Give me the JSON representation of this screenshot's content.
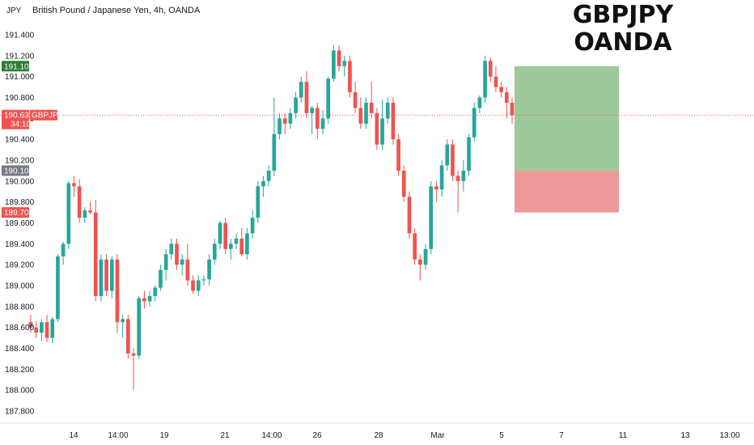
{
  "chart_data": {
    "type": "candlestick",
    "axis_unit": "JPY",
    "header": "British Pound / Japanese Yen, 4h, OANDA",
    "title_lines": [
      "GBPJPY",
      "OANDA"
    ],
    "ylim": [
      187.7,
      191.55
    ],
    "y_ticks": [
      "191.400",
      "191.200",
      "191.000",
      "190.800",
      "190.600",
      "190.400",
      "190.200",
      "190.000",
      "189.800",
      "189.600",
      "189.400",
      "189.200",
      "189.000",
      "188.800",
      "188.600",
      "188.400",
      "188.200",
      "188.000",
      "187.800"
    ],
    "x_ticks": [
      "14",
      "14:00",
      "19",
      "21",
      "14:00",
      "26",
      "28",
      "Mar",
      "5",
      "7",
      "11",
      "13",
      "13:00"
    ],
    "price_badges": {
      "take_profit": "191.100",
      "current_price": "190.632",
      "countdown": "34:10",
      "symbol": "GBPJPY",
      "entry": "190.100",
      "stop_loss": "189.700"
    },
    "position": {
      "entry": 190.1,
      "take_profit": 191.1,
      "stop_loss": 189.7,
      "current_price": 190.632
    },
    "colors": {
      "up": "#26a69a",
      "down": "#ef5350",
      "profit_zone": "#9ec99a",
      "loss_zone": "#eb9a99",
      "entry_badge": "#787b86",
      "tp_badge": "#2e7d32"
    },
    "candles": [
      {
        "o": 188.65,
        "h": 188.72,
        "l": 188.55,
        "c": 188.6
      },
      {
        "o": 188.6,
        "h": 188.66,
        "l": 188.5,
        "c": 188.55
      },
      {
        "o": 188.55,
        "h": 188.68,
        "l": 188.47,
        "c": 188.65
      },
      {
        "o": 188.65,
        "h": 188.72,
        "l": 188.46,
        "c": 188.5
      },
      {
        "o": 188.5,
        "h": 188.7,
        "l": 188.45,
        "c": 188.68
      },
      {
        "o": 188.68,
        "h": 189.3,
        "l": 188.65,
        "c": 189.28
      },
      {
        "o": 189.28,
        "h": 189.42,
        "l": 189.2,
        "c": 189.4
      },
      {
        "o": 189.4,
        "h": 190.0,
        "l": 189.35,
        "c": 189.98
      },
      {
        "o": 189.98,
        "h": 190.05,
        "l": 189.85,
        "c": 189.95
      },
      {
        "o": 189.95,
        "h": 190.02,
        "l": 189.6,
        "c": 189.65
      },
      {
        "o": 189.65,
        "h": 189.75,
        "l": 189.6,
        "c": 189.72
      },
      {
        "o": 189.72,
        "h": 189.8,
        "l": 189.68,
        "c": 189.7
      },
      {
        "o": 189.7,
        "h": 189.82,
        "l": 188.85,
        "c": 188.9
      },
      {
        "o": 188.9,
        "h": 189.3,
        "l": 188.85,
        "c": 189.25
      },
      {
        "o": 189.25,
        "h": 189.3,
        "l": 188.9,
        "c": 188.95
      },
      {
        "o": 188.95,
        "h": 189.28,
        "l": 188.88,
        "c": 189.25
      },
      {
        "o": 189.25,
        "h": 189.3,
        "l": 188.55,
        "c": 188.65
      },
      {
        "o": 188.65,
        "h": 188.72,
        "l": 188.5,
        "c": 188.68
      },
      {
        "o": 188.68,
        "h": 188.72,
        "l": 188.3,
        "c": 188.35
      },
      {
        "o": 188.35,
        "h": 188.4,
        "l": 188.0,
        "c": 188.33
      },
      {
        "o": 188.33,
        "h": 188.9,
        "l": 188.3,
        "c": 188.88
      },
      {
        "o": 188.88,
        "h": 188.95,
        "l": 188.78,
        "c": 188.85
      },
      {
        "o": 188.85,
        "h": 188.95,
        "l": 188.8,
        "c": 188.9
      },
      {
        "o": 188.9,
        "h": 189.0,
        "l": 188.85,
        "c": 188.98
      },
      {
        "o": 188.98,
        "h": 189.2,
        "l": 188.95,
        "c": 189.15
      },
      {
        "o": 189.15,
        "h": 189.35,
        "l": 189.05,
        "c": 189.3
      },
      {
        "o": 189.3,
        "h": 189.45,
        "l": 189.25,
        "c": 189.4
      },
      {
        "o": 189.4,
        "h": 189.45,
        "l": 189.15,
        "c": 189.2
      },
      {
        "o": 189.2,
        "h": 189.3,
        "l": 189.1,
        "c": 189.25
      },
      {
        "o": 189.25,
        "h": 189.4,
        "l": 189.0,
        "c": 189.05
      },
      {
        "o": 189.05,
        "h": 189.1,
        "l": 188.92,
        "c": 188.95
      },
      {
        "o": 188.95,
        "h": 189.1,
        "l": 188.9,
        "c": 189.05
      },
      {
        "o": 189.05,
        "h": 189.1,
        "l": 189.0,
        "c": 189.06
      },
      {
        "o": 189.06,
        "h": 189.3,
        "l": 189.0,
        "c": 189.25
      },
      {
        "o": 189.25,
        "h": 189.45,
        "l": 189.2,
        "c": 189.4
      },
      {
        "o": 189.4,
        "h": 189.62,
        "l": 189.35,
        "c": 189.6
      },
      {
        "o": 189.6,
        "h": 189.65,
        "l": 189.3,
        "c": 189.35
      },
      {
        "o": 189.35,
        "h": 189.45,
        "l": 189.25,
        "c": 189.4
      },
      {
        "o": 189.4,
        "h": 189.5,
        "l": 189.35,
        "c": 189.45
      },
      {
        "o": 189.45,
        "h": 189.55,
        "l": 189.28,
        "c": 189.3
      },
      {
        "o": 189.3,
        "h": 189.55,
        "l": 189.25,
        "c": 189.5
      },
      {
        "o": 189.5,
        "h": 189.72,
        "l": 189.45,
        "c": 189.65
      },
      {
        "o": 189.65,
        "h": 190.0,
        "l": 189.6,
        "c": 189.95
      },
      {
        "o": 189.95,
        "h": 190.05,
        "l": 189.85,
        "c": 190.0
      },
      {
        "o": 190.0,
        "h": 190.15,
        "l": 189.95,
        "c": 190.1
      },
      {
        "o": 190.1,
        "h": 190.8,
        "l": 190.05,
        "c": 190.45
      },
      {
        "o": 190.45,
        "h": 190.65,
        "l": 190.4,
        "c": 190.6
      },
      {
        "o": 190.6,
        "h": 190.65,
        "l": 190.45,
        "c": 190.55
      },
      {
        "o": 190.55,
        "h": 190.7,
        "l": 190.5,
        "c": 190.65
      },
      {
        "o": 190.65,
        "h": 190.85,
        "l": 190.6,
        "c": 190.8
      },
      {
        "o": 190.8,
        "h": 191.0,
        "l": 190.75,
        "c": 190.95
      },
      {
        "o": 190.95,
        "h": 191.05,
        "l": 190.6,
        "c": 190.65
      },
      {
        "o": 190.65,
        "h": 190.72,
        "l": 190.45,
        "c": 190.7
      },
      {
        "o": 190.7,
        "h": 190.75,
        "l": 190.4,
        "c": 190.5
      },
      {
        "o": 190.5,
        "h": 190.68,
        "l": 190.45,
        "c": 190.6
      },
      {
        "o": 190.6,
        "h": 191.0,
        "l": 190.55,
        "c": 190.98
      },
      {
        "o": 190.98,
        "h": 191.3,
        "l": 190.95,
        "c": 191.25
      },
      {
        "o": 191.25,
        "h": 191.3,
        "l": 191.05,
        "c": 191.1
      },
      {
        "o": 191.1,
        "h": 191.2,
        "l": 191.0,
        "c": 191.15
      },
      {
        "o": 191.15,
        "h": 191.2,
        "l": 190.8,
        "c": 190.85
      },
      {
        "o": 190.85,
        "h": 190.95,
        "l": 190.65,
        "c": 190.7
      },
      {
        "o": 190.7,
        "h": 190.8,
        "l": 190.5,
        "c": 190.55
      },
      {
        "o": 190.55,
        "h": 190.8,
        "l": 190.5,
        "c": 190.75
      },
      {
        "o": 190.75,
        "h": 190.95,
        "l": 190.6,
        "c": 190.65
      },
      {
        "o": 190.65,
        "h": 190.7,
        "l": 190.3,
        "c": 190.35
      },
      {
        "o": 190.35,
        "h": 190.78,
        "l": 190.3,
        "c": 190.6
      },
      {
        "o": 190.6,
        "h": 190.8,
        "l": 190.55,
        "c": 190.75
      },
      {
        "o": 190.75,
        "h": 190.8,
        "l": 190.35,
        "c": 190.4
      },
      {
        "o": 190.4,
        "h": 190.45,
        "l": 190.05,
        "c": 190.1
      },
      {
        "o": 190.1,
        "h": 190.15,
        "l": 189.8,
        "c": 189.85
      },
      {
        "o": 189.85,
        "h": 189.9,
        "l": 189.45,
        "c": 189.5
      },
      {
        "o": 189.5,
        "h": 189.55,
        "l": 189.2,
        "c": 189.25
      },
      {
        "o": 189.25,
        "h": 189.3,
        "l": 189.05,
        "c": 189.2
      },
      {
        "o": 189.2,
        "h": 189.4,
        "l": 189.15,
        "c": 189.35
      },
      {
        "o": 189.35,
        "h": 190.0,
        "l": 189.3,
        "c": 189.95
      },
      {
        "o": 189.95,
        "h": 190.0,
        "l": 189.8,
        "c": 189.92
      },
      {
        "o": 189.92,
        "h": 190.2,
        "l": 189.85,
        "c": 190.15
      },
      {
        "o": 190.15,
        "h": 190.4,
        "l": 190.1,
        "c": 190.35
      },
      {
        "o": 190.35,
        "h": 190.4,
        "l": 190.0,
        "c": 190.05
      },
      {
        "o": 190.05,
        "h": 190.1,
        "l": 189.7,
        "c": 190.0
      },
      {
        "o": 190.0,
        "h": 190.2,
        "l": 189.9,
        "c": 190.1
      },
      {
        "o": 190.1,
        "h": 190.45,
        "l": 190.05,
        "c": 190.42
      },
      {
        "o": 190.42,
        "h": 190.75,
        "l": 190.38,
        "c": 190.7
      },
      {
        "o": 190.7,
        "h": 190.82,
        "l": 190.65,
        "c": 190.8
      },
      {
        "o": 190.8,
        "h": 191.2,
        "l": 190.75,
        "c": 191.15
      },
      {
        "o": 191.15,
        "h": 191.18,
        "l": 190.95,
        "c": 191.0
      },
      {
        "o": 191.0,
        "h": 191.1,
        "l": 190.85,
        "c": 190.9
      },
      {
        "o": 190.9,
        "h": 190.95,
        "l": 190.8,
        "c": 190.85
      },
      {
        "o": 190.85,
        "h": 190.9,
        "l": 190.6,
        "c": 190.75
      },
      {
        "o": 190.75,
        "h": 190.8,
        "l": 190.55,
        "c": 190.63
      }
    ]
  }
}
